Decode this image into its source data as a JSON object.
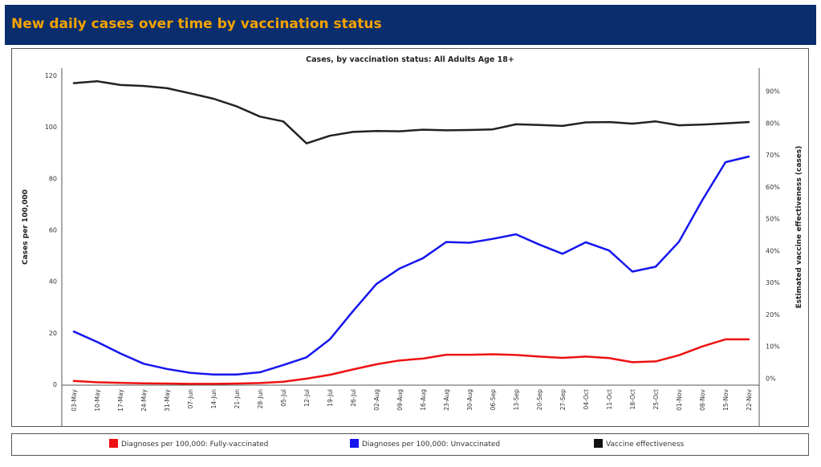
{
  "banner": {
    "title": "New daily cases over time by vaccination status"
  },
  "legend": {
    "items": [
      {
        "label": "Diagnoses per 100,000: Fully-vaccinated",
        "color": "#ee1111"
      },
      {
        "label": "Diagnoses per 100,000: Unvaccinated",
        "color": "#1515ee"
      },
      {
        "label": "Vaccine effectiveness",
        "color": "#222222"
      }
    ]
  },
  "chart_data": {
    "type": "line",
    "title": "Cases, by vaccination status: All Adults Age 18+",
    "ylabel": "Cases per 100,000",
    "y2label": "Estimated vaccine effectiveness (cases)",
    "ylim": [
      0,
      120
    ],
    "y2lim": [
      0,
      0.95
    ],
    "yticks": [
      "120",
      "100",
      "80",
      "60",
      "40",
      "20",
      "0"
    ],
    "y2ticks": [
      "90%",
      "80%",
      "70%",
      "60%",
      "50%",
      "40%",
      "30%",
      "20%",
      "10%",
      "0%"
    ],
    "grid": false,
    "categories": [
      "03-May",
      "10-May",
      "17-May",
      "24-May",
      "31-May",
      "07-Jun",
      "14-Jun",
      "21-Jun",
      "28-Jun",
      "05-Jul",
      "12-Jul",
      "19-Jul",
      "26-Jul",
      "02-Aug",
      "09-Aug",
      "16-Aug",
      "23-Aug",
      "30-Aug",
      "06-Sep",
      "13-Sep",
      "20-Sep",
      "27-Sep",
      "04-Oct",
      "11-Oct",
      "18-Oct",
      "25-Oct",
      "01-Nov",
      "08-Nov",
      "15-Nov",
      "22-Nov"
    ],
    "series": [
      {
        "name": "Diagnoses per 100,000: Fully-vaccinated",
        "axis": "left",
        "color": "#ee1111",
        "values": [
          1.3,
          0.8,
          0.6,
          0.4,
          0.3,
          0.2,
          0.2,
          0.3,
          0.5,
          1.0,
          2.2,
          3.7,
          5.8,
          7.8,
          9.3,
          10.0,
          11.5,
          11.5,
          11.7,
          11.4,
          10.8,
          10.3,
          10.8,
          10.2,
          8.6,
          8.9,
          11.3,
          14.7,
          17.5,
          17.5
        ]
      },
      {
        "name": "Diagnoses per 100,000: Unvaccinated",
        "axis": "left",
        "color": "#1515ee",
        "values": [
          20.5,
          16.5,
          12.0,
          8.0,
          6.0,
          4.5,
          3.8,
          3.8,
          4.7,
          7.5,
          10.5,
          17.5,
          28.5,
          39.0,
          45.0,
          49.0,
          55.3,
          55.0,
          56.5,
          58.3,
          54.3,
          50.7,
          55.2,
          52.0,
          43.8,
          45.7,
          55.4,
          71.5,
          86.3,
          88.5
        ]
      },
      {
        "name": "Vaccine effectiveness",
        "axis": "right",
        "color": "#222222",
        "values": [
          0.925,
          0.931,
          0.919,
          0.916,
          0.909,
          0.893,
          0.876,
          0.852,
          0.82,
          0.805,
          0.736,
          0.76,
          0.772,
          0.775,
          0.774,
          0.779,
          0.777,
          0.778,
          0.78,
          0.796,
          0.794,
          0.791,
          0.802,
          0.803,
          0.798,
          0.805,
          0.793,
          0.795,
          0.799,
          0.803
        ]
      }
    ]
  }
}
